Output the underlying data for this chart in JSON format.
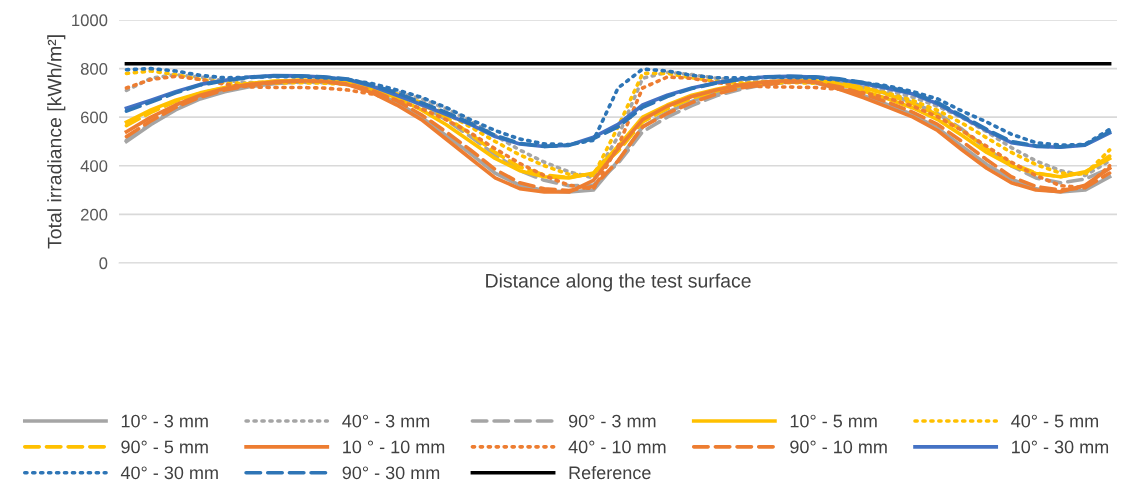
{
  "chart_data": {
    "type": "line",
    "xlabel": "Distance along the test surface",
    "ylabel": "Total irradiance [kWh/m²]",
    "categories": [
      null,
      null,
      null,
      null,
      null,
      null,
      null,
      null,
      null,
      null,
      null,
      null,
      null,
      null,
      null,
      null,
      null,
      null,
      null,
      null,
      null,
      null,
      null,
      null,
      null,
      null,
      null,
      null,
      null,
      null,
      null,
      null,
      null,
      null,
      null,
      null,
      null,
      null,
      null,
      null,
      null
    ],
    "ylim": [
      0,
      1000
    ],
    "yticks": [
      0,
      200,
      400,
      600,
      800,
      1000
    ],
    "grid": "y",
    "legend": "bottom",
    "marker": "none",
    "series": [
      {
        "name": "10° - 3 mm",
        "color": "#a5a5a5",
        "line_style": "solid",
        "values": [
          500,
          570,
          630,
          675,
          705,
          725,
          738,
          745,
          745,
          735,
          705,
          660,
          600,
          525,
          450,
          370,
          320,
          298,
          292,
          300,
          420,
          560,
          620,
          665,
          700,
          722,
          738,
          745,
          742,
          718,
          688,
          650,
          610,
          555,
          480,
          405,
          345,
          305,
          292,
          300,
          355
        ]
      },
      {
        "name": "40° - 3 mm",
        "color": "#a5a5a5",
        "line_style": "dotted",
        "values": [
          710,
          760,
          775,
          765,
          750,
          742,
          742,
          743,
          742,
          738,
          725,
          705,
          675,
          635,
          585,
          525,
          465,
          415,
          375,
          350,
          520,
          760,
          785,
          775,
          760,
          750,
          748,
          748,
          745,
          738,
          725,
          708,
          682,
          645,
          598,
          540,
          475,
          420,
          380,
          360,
          420
        ]
      },
      {
        "name": "90° - 3 mm",
        "color": "#a5a5a5",
        "line_style": "dashed",
        "values": [
          505,
          575,
          635,
          680,
          710,
          730,
          742,
          748,
          750,
          745,
          725,
          695,
          650,
          590,
          520,
          445,
          380,
          340,
          318,
          320,
          410,
          540,
          600,
          648,
          688,
          715,
          735,
          745,
          748,
          742,
          722,
          695,
          660,
          615,
          550,
          470,
          400,
          350,
          330,
          345,
          390
        ]
      },
      {
        "name": "10° - 5 mm",
        "color": "#ffc000",
        "line_style": "solid",
        "values": [
          580,
          630,
          670,
          700,
          722,
          738,
          748,
          752,
          750,
          742,
          715,
          680,
          630,
          570,
          500,
          430,
          380,
          355,
          350,
          370,
          480,
          600,
          650,
          690,
          715,
          735,
          745,
          752,
          750,
          735,
          708,
          675,
          638,
          590,
          525,
          455,
          400,
          368,
          355,
          375,
          430
        ]
      },
      {
        "name": "40° - 5 mm",
        "color": "#ffc000",
        "line_style": "dotted",
        "values": [
          780,
          790,
          775,
          755,
          742,
          738,
          740,
          742,
          740,
          735,
          720,
          695,
          660,
          615,
          560,
          500,
          445,
          400,
          365,
          360,
          560,
          780,
          780,
          762,
          748,
          740,
          740,
          742,
          740,
          732,
          718,
          698,
          668,
          628,
          575,
          515,
          455,
          405,
          370,
          365,
          465
        ]
      },
      {
        "name": "90° - 5 mm",
        "color": "#ffc000",
        "line_style": "dashed",
        "values": [
          565,
          620,
          665,
          698,
          722,
          738,
          748,
          752,
          752,
          745,
          725,
          695,
          655,
          600,
          530,
          455,
          395,
          362,
          352,
          368,
          460,
          580,
          635,
          678,
          708,
          730,
          743,
          750,
          752,
          742,
          722,
          692,
          655,
          610,
          545,
          470,
          410,
          370,
          355,
          372,
          440
        ]
      },
      {
        "name": "10 ° - 10 mm",
        "color": "#ed7d31",
        "line_style": "solid",
        "values": [
          540,
          600,
          650,
          690,
          718,
          735,
          745,
          750,
          748,
          734,
          700,
          650,
          590,
          510,
          430,
          350,
          306,
          292,
          292,
          340,
          470,
          590,
          645,
          685,
          712,
          732,
          745,
          750,
          745,
          715,
          680,
          640,
          600,
          545,
          465,
          390,
          330,
          300,
          293,
          320,
          390
        ]
      },
      {
        "name": "40° - 10 mm",
        "color": "#ed7d31",
        "line_style": "dotted",
        "values": [
          720,
          755,
          768,
          755,
          735,
          725,
          722,
          722,
          720,
          712,
          695,
          670,
          635,
          590,
          535,
          470,
          410,
          360,
          320,
          305,
          480,
          720,
          765,
          760,
          742,
          730,
          725,
          724,
          722,
          715,
          700,
          678,
          645,
          602,
          545,
          480,
          415,
          360,
          318,
          310,
          400
        ]
      },
      {
        "name": "90° - 10 mm",
        "color": "#ed7d31",
        "line_style": "dashed",
        "values": [
          520,
          585,
          640,
          682,
          712,
          730,
          742,
          748,
          747,
          737,
          710,
          668,
          610,
          540,
          465,
          385,
          330,
          305,
          298,
          315,
          420,
          560,
          615,
          660,
          695,
          720,
          735,
          745,
          745,
          725,
          695,
          660,
          620,
          570,
          500,
          425,
          355,
          315,
          300,
          310,
          370
        ]
      },
      {
        "name": "10° - 30 mm",
        "color": "#4472c4",
        "line_style": "solid",
        "values": [
          637,
          670,
          705,
          735,
          752,
          765,
          771,
          770,
          765,
          755,
          727,
          690,
          652,
          612,
          570,
          520,
          490,
          479,
          485,
          518,
          570,
          650,
          690,
          720,
          742,
          757,
          766,
          768,
          765,
          755,
          738,
          718,
          695,
          655,
          600,
          545,
          495,
          480,
          476,
          485,
          535
        ]
      },
      {
        "name": "40° - 30 mm",
        "color": "#2e75b6",
        "line_style": "dotted",
        "values": [
          795,
          800,
          790,
          772,
          762,
          764,
          767,
          766,
          762,
          755,
          738,
          712,
          682,
          640,
          590,
          545,
          510,
          490,
          487,
          505,
          720,
          798,
          790,
          772,
          762,
          762,
          764,
          763,
          760,
          753,
          742,
          728,
          705,
          675,
          625,
          580,
          530,
          495,
          485,
          488,
          550
        ]
      },
      {
        "name": "90° - 30 mm",
        "color": "#2e75b6",
        "line_style": "dashed",
        "values": [
          625,
          662,
          700,
          732,
          750,
          763,
          770,
          770,
          766,
          757,
          732,
          700,
          660,
          620,
          575,
          525,
          492,
          480,
          484,
          512,
          560,
          640,
          685,
          718,
          740,
          756,
          765,
          768,
          766,
          758,
          742,
          722,
          700,
          660,
          605,
          550,
          500,
          482,
          478,
          487,
          540
        ]
      },
      {
        "name": "Reference",
        "color": "#000000",
        "line_style": "solid",
        "values": [
          820,
          820,
          820,
          820,
          820,
          820,
          820,
          820,
          820,
          820,
          820,
          820,
          820,
          820,
          820,
          820,
          820,
          820,
          820,
          820,
          820,
          820,
          820,
          820,
          820,
          820,
          820,
          820,
          820,
          820,
          820,
          820,
          820,
          820,
          820,
          820,
          820,
          820,
          820,
          820,
          820
        ]
      }
    ]
  }
}
